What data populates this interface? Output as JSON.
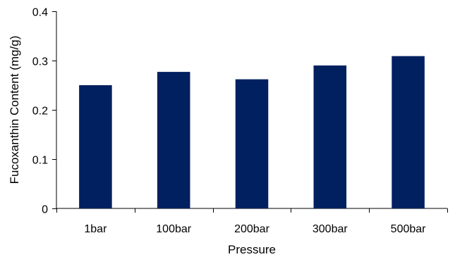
{
  "chart_data": {
    "type": "bar",
    "title": "",
    "xlabel": "Pressure",
    "ylabel": "Fucoxanthin Content (mg/g)",
    "categories": [
      "1bar",
      "100bar",
      "200bar",
      "300bar",
      "500bar"
    ],
    "values": [
      0.25,
      0.277,
      0.262,
      0.29,
      0.309
    ],
    "ylim": [
      0,
      0.4
    ],
    "yticks": [
      "0",
      "0.1",
      "0.2",
      "0.3",
      "0.4"
    ],
    "ytick_values": [
      0,
      0.1,
      0.2,
      0.3,
      0.4
    ],
    "grid": false,
    "legend": "none",
    "bar_color": "#002060",
    "axis_color": "#000000"
  }
}
